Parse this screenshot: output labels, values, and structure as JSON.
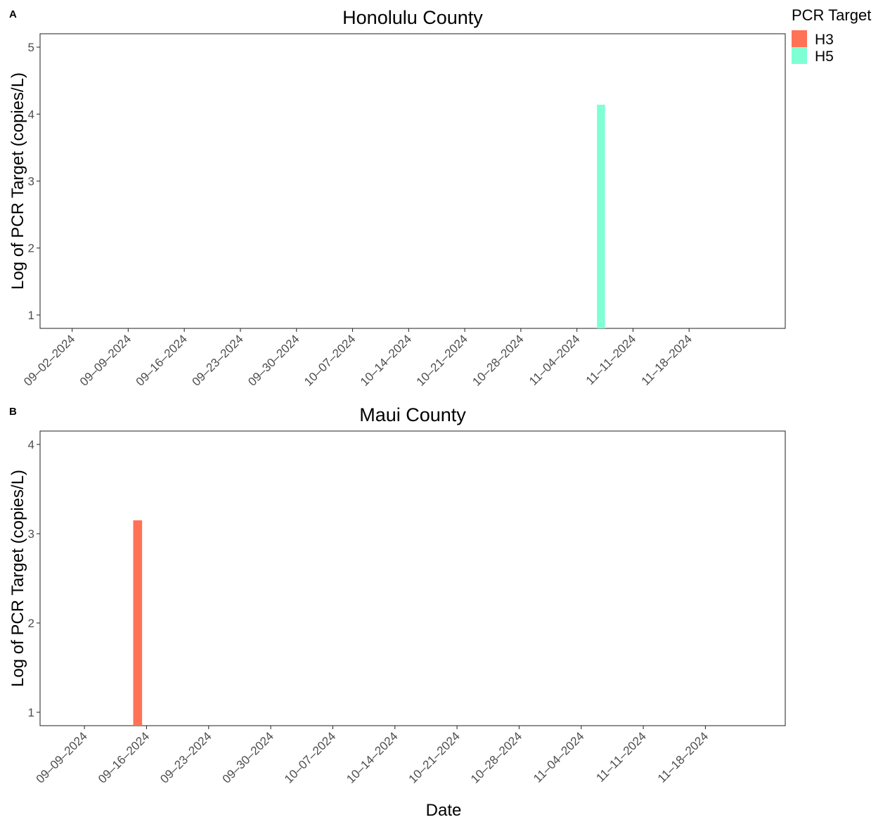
{
  "colors": {
    "H3": "#FF7256",
    "H5": "#7FFFD4"
  },
  "legend": {
    "title": "PCR Target",
    "items": [
      {
        "key": "H3",
        "label": "H3",
        "color": "#FF7256"
      },
      {
        "key": "H5",
        "label": "H5",
        "color": "#7FFFD4"
      }
    ]
  },
  "shared_xlabel": "Date",
  "chart_data": [
    {
      "type": "bar",
      "panel_label": "A",
      "title": "Honolulu County",
      "xlabel": "",
      "ylabel": "Log of PCR Target (copies/L)",
      "ylim": [
        0.8,
        5.2
      ],
      "yticks": [
        1,
        2,
        3,
        4,
        5
      ],
      "xlim": [
        "2024-08-29",
        "2024-11-30"
      ],
      "xticks": [
        "09–02–2024",
        "09–09–2024",
        "09–16–2024",
        "09–23–2024",
        "09–30–2024",
        "10–07–2024",
        "10–14–2024",
        "10–21–2024",
        "10–28–2024",
        "11–04–2024",
        "11–11–2024",
        "11–18–2024"
      ],
      "xtick_dates": [
        "2024-09-02",
        "2024-09-09",
        "2024-09-16",
        "2024-09-23",
        "2024-09-30",
        "2024-10-07",
        "2024-10-14",
        "2024-10-21",
        "2024-10-28",
        "2024-11-04",
        "2024-11-11",
        "2024-11-18"
      ],
      "series": [
        {
          "name": "H5",
          "points": [
            {
              "x": "2024-11-07",
              "y": 4.14
            }
          ]
        }
      ],
      "grid": false
    },
    {
      "type": "bar",
      "panel_label": "B",
      "title": "Maui County",
      "xlabel": "Date",
      "ylabel": "Log of PCR Target (copies/L)",
      "ylim": [
        0.85,
        4.15
      ],
      "yticks": [
        1,
        2,
        3,
        4
      ],
      "xlim": [
        "2024-09-04",
        "2024-11-27"
      ],
      "xticks": [
        "09–09–2024",
        "09–16–2024",
        "09–23–2024",
        "09–30–2024",
        "10–07–2024",
        "10–14–2024",
        "10–21–2024",
        "10–28–2024",
        "11–04–2024",
        "11–11–2024",
        "11–18–2024"
      ],
      "xtick_dates": [
        "2024-09-09",
        "2024-09-16",
        "2024-09-23",
        "2024-09-30",
        "2024-10-07",
        "2024-10-14",
        "2024-10-21",
        "2024-10-28",
        "2024-11-04",
        "2024-11-11",
        "2024-11-18"
      ],
      "series": [
        {
          "name": "H3",
          "points": [
            {
              "x": "2024-09-15",
              "y": 3.15
            }
          ]
        }
      ],
      "grid": false
    }
  ]
}
